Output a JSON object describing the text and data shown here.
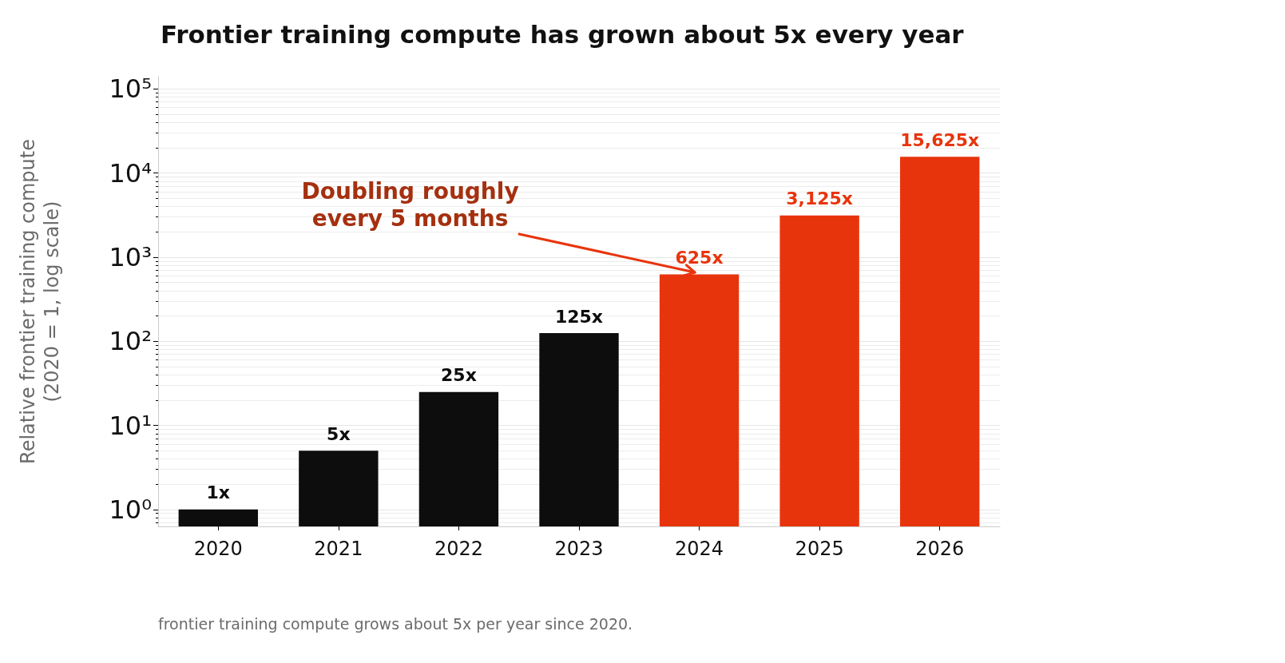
{
  "chart_data": {
    "type": "bar",
    "title": "Frontier training compute has grown about 5x every year",
    "ylabel": "Relative frontier training compute\n(2020 = 1, log scale)",
    "categories": [
      "2020",
      "2021",
      "2022",
      "2023",
      "2024",
      "2025",
      "2026"
    ],
    "values": [
      1,
      5,
      25,
      125,
      625,
      3125,
      15625
    ],
    "colors": [
      "#0d0d0d",
      "#0d0d0d",
      "#0d0d0d",
      "#0d0d0d",
      "#e8340c",
      "#e8340c",
      "#e8340c"
    ],
    "value_labels": [
      "1x",
      "5x",
      "25x",
      "125x",
      "625x",
      "3,125x",
      "15,625x"
    ],
    "log": "y",
    "ylim": [
      0.63,
      140000
    ],
    "yticks": [
      {
        "value": 1,
        "label": "10⁰"
      },
      {
        "value": 10,
        "label": "10¹"
      },
      {
        "value": 100,
        "label": "10²"
      },
      {
        "value": 1000,
        "label": "10³"
      },
      {
        "value": 10000,
        "label": "10⁴"
      },
      {
        "value": 100000,
        "label": "10⁵"
      }
    ],
    "grid": true,
    "annotations": [
      {
        "text": "Doubling roughly\nevery 5 months",
        "x": "2024",
        "y": 625
      },
      "frontier training compute grows about 5x per year since 2020."
    ]
  }
}
